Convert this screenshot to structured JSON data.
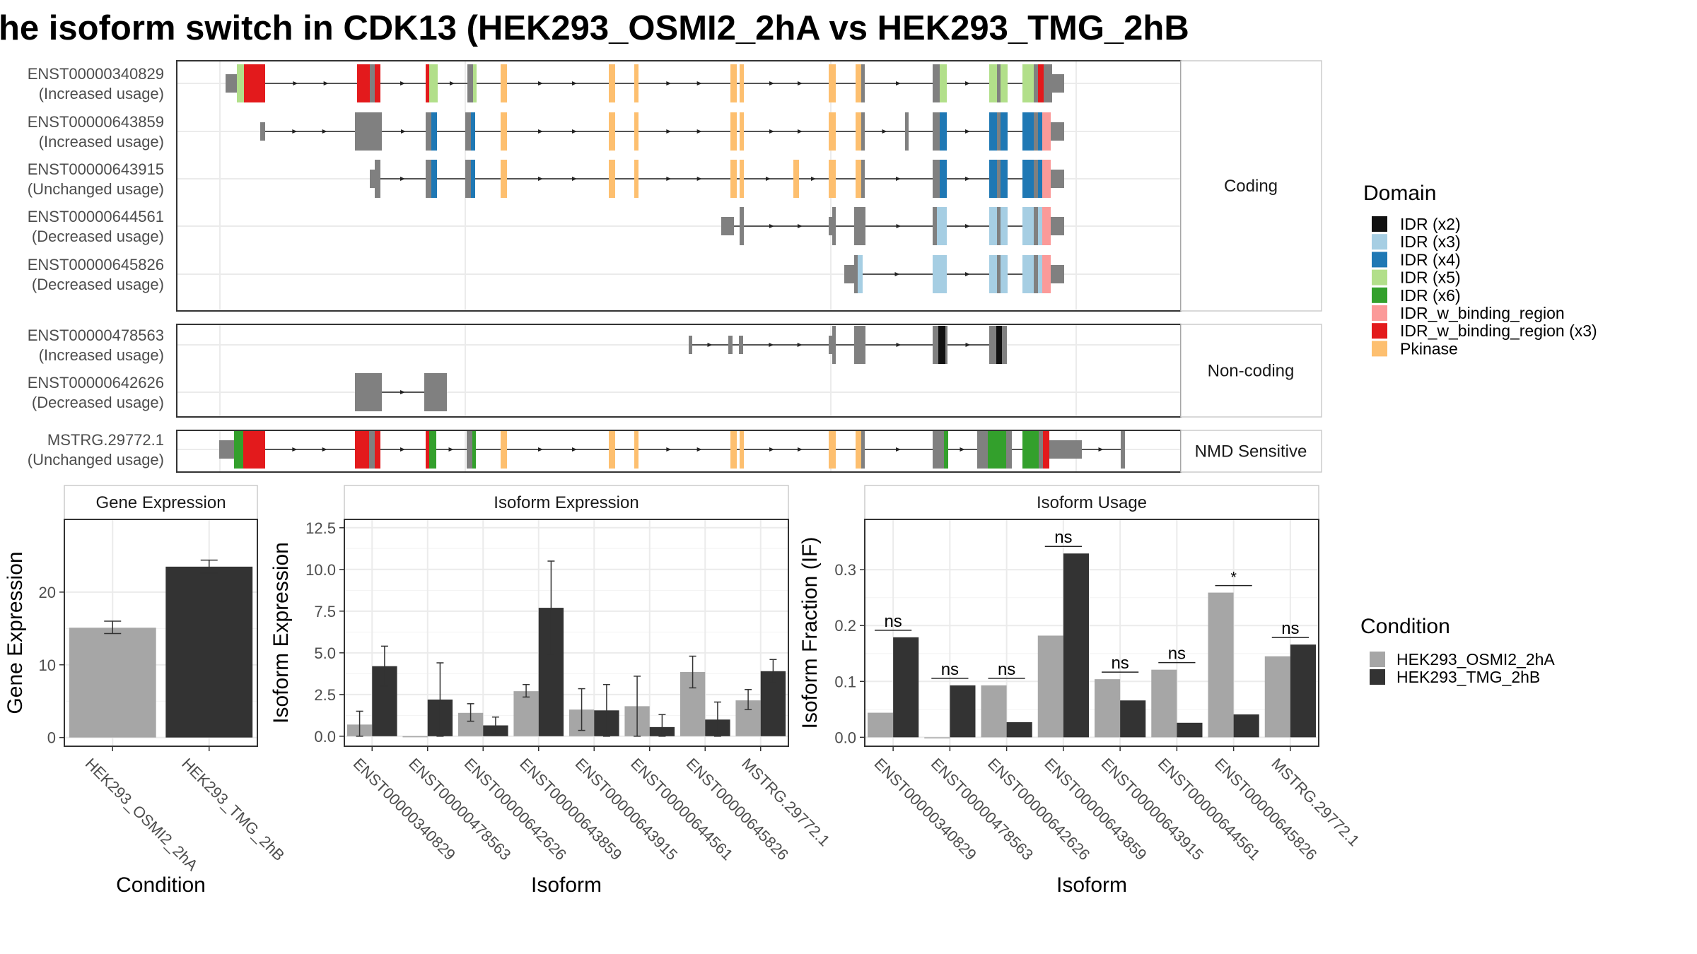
{
  "title": "he isoform switch in CDK13 (HEK293_OSMI2_2hA vs HEK293_TMG_2hB",
  "colors": {
    "intron": "#222222",
    "grey_exon": "#808080",
    "cond1": "#a6a6a6",
    "cond2": "#333333",
    "domains": [
      "#111111",
      "#a6cee3",
      "#1f78b4",
      "#b2df8a",
      "#33a02c",
      "#fb9a99",
      "#e31a1c",
      "#fdbf6f"
    ]
  },
  "structure": {
    "transcripts": [
      {
        "id": "ENST00000340829",
        "usage": "(Increased usage)",
        "class": "Coding"
      },
      {
        "id": "ENST00000643859",
        "usage": "(Increased usage)",
        "class": "Coding"
      },
      {
        "id": "ENST00000643915",
        "usage": "(Unchanged usage)",
        "class": "Coding"
      },
      {
        "id": "ENST00000644561",
        "usage": "(Decreased usage)",
        "class": "Coding"
      },
      {
        "id": "ENST00000645826",
        "usage": "(Decreased usage)",
        "class": "Coding"
      },
      {
        "id": "ENST00000478563",
        "usage": "(Increased usage)",
        "class": "Non-coding"
      },
      {
        "id": "ENST00000642626",
        "usage": "(Decreased usage)",
        "class": "Non-coding"
      },
      {
        "id": "MSTRG.29772.1",
        "usage": "(Unchanged usage)",
        "class": "NMD Sensitive"
      }
    ],
    "panel_labels": [
      "Coding",
      "Non-coding",
      "NMD Sensitive"
    ],
    "legend": {
      "title": "Domain",
      "entries": [
        "IDR (x2)",
        "IDR (x3)",
        "IDR (x4)",
        "IDR (x5)",
        "IDR (x6)",
        "IDR_w_binding_region",
        "IDR_w_binding_region (x3)",
        "Pkinase"
      ]
    }
  },
  "chart_data": [
    {
      "type": "bar",
      "title": "Gene Expression",
      "xlabel": "Condition",
      "ylabel": "Gene Expression",
      "categories": [
        "HEK293_OSMI2_2hA",
        "HEK293_TMG_2hB"
      ],
      "values": [
        15.1,
        23.5
      ],
      "errors": [
        [
          14.3,
          16.0
        ],
        [
          22.6,
          24.4
        ]
      ],
      "ylim": [
        -1.2,
        30
      ],
      "yticks": [
        0,
        10,
        20
      ]
    },
    {
      "type": "bar",
      "title": "Isoform Expression",
      "xlabel": "Isoform",
      "ylabel": "Isoform Expression",
      "categories": [
        "ENST00000340829",
        "ENST00000478563",
        "ENST00000642626",
        "ENST00000643859",
        "ENST00000643915",
        "ENST00000644561",
        "ENST00000645826",
        "MSTRG.29772.1"
      ],
      "series": [
        {
          "name": "HEK293_OSMI2_2hA",
          "values": [
            0.7,
            0.0,
            1.4,
            2.7,
            1.6,
            1.8,
            3.85,
            2.15
          ],
          "errors": [
            [
              0.0,
              1.5
            ],
            [
              0.0,
              0.0
            ],
            [
              0.9,
              1.95
            ],
            [
              2.35,
              3.1
            ],
            [
              0.35,
              2.85
            ],
            [
              0.0,
              3.6
            ],
            [
              2.9,
              4.8
            ],
            [
              1.6,
              2.8
            ]
          ]
        },
        {
          "name": "HEK293_TMG_2hB",
          "values": [
            4.2,
            2.2,
            0.65,
            7.7,
            1.55,
            0.55,
            1.0,
            3.9
          ],
          "errors": [
            [
              3.0,
              5.4
            ],
            [
              0.0,
              4.4
            ],
            [
              0.1,
              1.15
            ],
            [
              4.9,
              10.5
            ],
            [
              0.0,
              3.1
            ],
            [
              0.0,
              1.3
            ],
            [
              0.0,
              2.05
            ],
            [
              3.2,
              4.6
            ]
          ]
        }
      ],
      "ylim": [
        -0.6,
        13.0
      ],
      "yticks": [
        0.0,
        2.5,
        5.0,
        7.5,
        10.0,
        12.5
      ]
    },
    {
      "type": "bar",
      "title": "Isoform Usage",
      "xlabel": "Isoform",
      "ylabel": "Isoform Fraction (IF)",
      "categories": [
        "ENST00000340829",
        "ENST00000478563",
        "ENST00000642626",
        "ENST00000643859",
        "ENST00000643915",
        "ENST00000644561",
        "ENST00000645826",
        "MSTRG.29772.1"
      ],
      "series": [
        {
          "name": "HEK293_OSMI2_2hA",
          "values": [
            0.044,
            0.0,
            0.093,
            0.182,
            0.104,
            0.121,
            0.259,
            0.145
          ]
        },
        {
          "name": "HEK293_TMG_2hB",
          "values": [
            0.179,
            0.093,
            0.027,
            0.329,
            0.066,
            0.026,
            0.041,
            0.166
          ]
        }
      ],
      "significance": [
        "ns",
        "ns",
        "ns",
        "ns",
        "ns",
        "ns",
        "*",
        "ns"
      ],
      "ylim": [
        -0.016,
        0.39
      ],
      "yticks": [
        0.0,
        0.1,
        0.2,
        0.3
      ]
    }
  ],
  "condition_legend": {
    "title": "Condition",
    "entries": [
      "HEK293_OSMI2_2hA",
      "HEK293_TMG_2hB"
    ]
  }
}
